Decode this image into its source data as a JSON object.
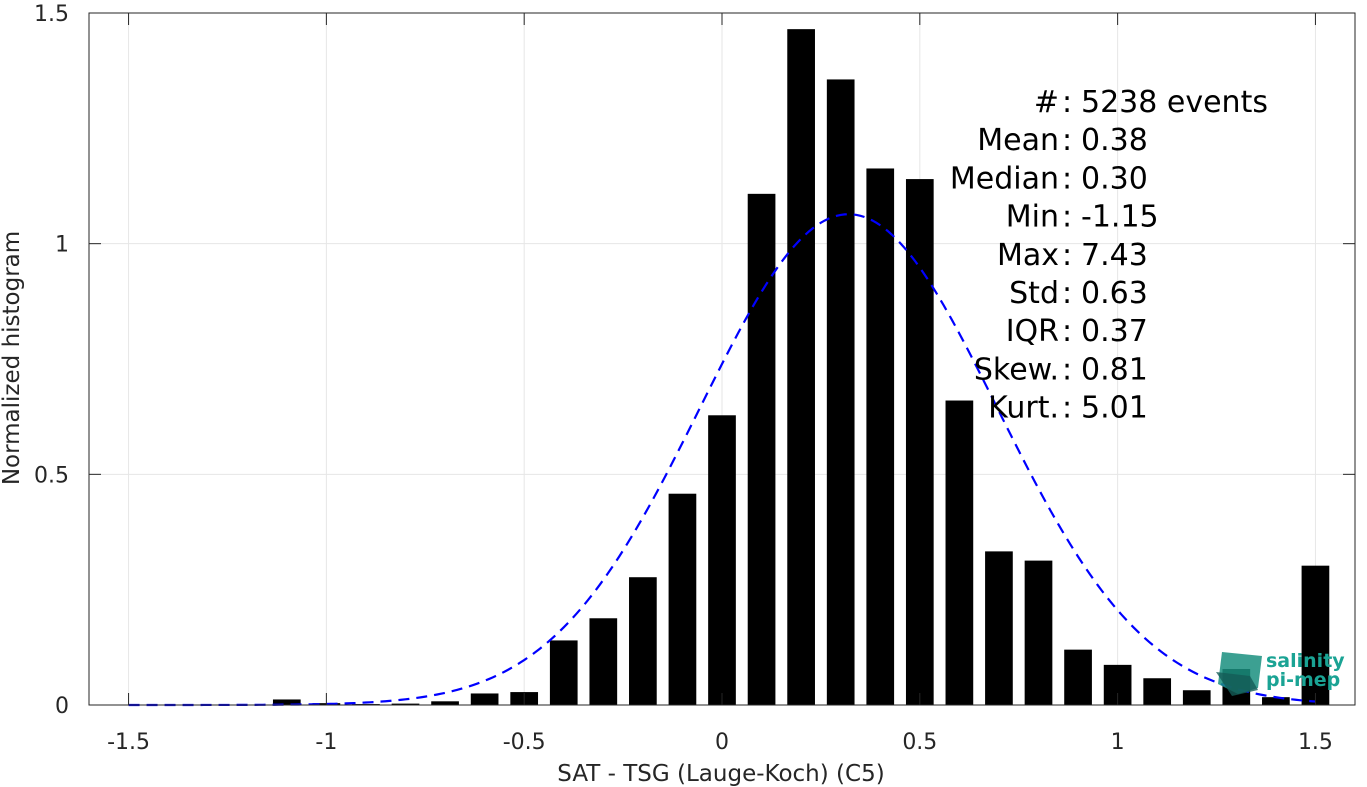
{
  "chart_data": {
    "type": "bar",
    "xlabel": "SAT - TSG (Lauge-Koch) (C5)",
    "ylabel": "Normalized histogram",
    "xlim": [
      -1.6,
      1.6
    ],
    "ylim": [
      0,
      1.5
    ],
    "xticks": [
      -1.5,
      -1,
      -0.5,
      0,
      0.5,
      1,
      1.5
    ],
    "xtick_labels": [
      "-1.5",
      "-1",
      "-0.5",
      "0",
      "0.5",
      "1",
      "1.5"
    ],
    "yticks": [
      0,
      0.5,
      1,
      1.5
    ],
    "ytick_labels": [
      "0",
      "0.5",
      "1",
      "1.5"
    ],
    "grid": true,
    "bar_color": "#000000",
    "bar_width": 0.07,
    "bars": [
      {
        "x": -1.1,
        "y": 0.012
      },
      {
        "x": -1.0,
        "y": 0.004
      },
      {
        "x": -0.9,
        "y": 0.002
      },
      {
        "x": -0.8,
        "y": 0.003
      },
      {
        "x": -0.7,
        "y": 0.008
      },
      {
        "x": -0.6,
        "y": 0.025
      },
      {
        "x": -0.5,
        "y": 0.028
      },
      {
        "x": -0.4,
        "y": 0.14
      },
      {
        "x": -0.3,
        "y": 0.188
      },
      {
        "x": -0.2,
        "y": 0.277
      },
      {
        "x": -0.1,
        "y": 0.458
      },
      {
        "x": 0.0,
        "y": 0.628
      },
      {
        "x": 0.1,
        "y": 1.108
      },
      {
        "x": 0.2,
        "y": 1.465
      },
      {
        "x": 0.3,
        "y": 1.356
      },
      {
        "x": 0.4,
        "y": 1.163
      },
      {
        "x": 0.5,
        "y": 1.14
      },
      {
        "x": 0.6,
        "y": 0.66
      },
      {
        "x": 0.7,
        "y": 0.333
      },
      {
        "x": 0.8,
        "y": 0.313
      },
      {
        "x": 0.9,
        "y": 0.12
      },
      {
        "x": 1.0,
        "y": 0.087
      },
      {
        "x": 1.1,
        "y": 0.058
      },
      {
        "x": 1.2,
        "y": 0.032
      },
      {
        "x": 1.3,
        "y": 0.078
      },
      {
        "x": 1.4,
        "y": 0.017
      },
      {
        "x": 1.5,
        "y": 0.302
      }
    ],
    "fit_curve": {
      "style": "dashed",
      "color": "#0000ff",
      "mean": 0.32,
      "std": 0.375,
      "x_range": [
        -1.5,
        1.5
      ]
    },
    "annotations": [
      "#  : 5238 events",
      "Mean : 0.38",
      "Median : 0.30",
      "Min : -1.15",
      "Max : 7.43",
      "Std : 0.63",
      "IQR : 0.37",
      "Skew. : 0.81",
      "Kurt. : 5.01"
    ]
  },
  "logo": {
    "line1": "salinity",
    "line2": "pi-mep"
  }
}
